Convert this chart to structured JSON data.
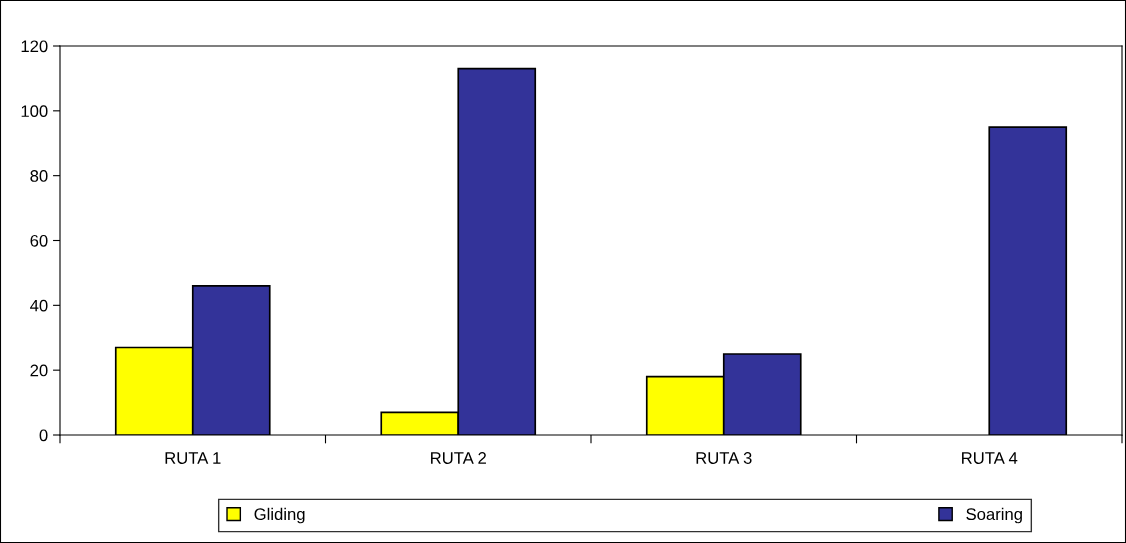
{
  "chart_data": {
    "type": "bar",
    "categories": [
      "RUTA 1",
      "RUTA 2",
      "RUTA 3",
      "RUTA 4"
    ],
    "series": [
      {
        "name": "Gliding",
        "color": "#ffff00",
        "values": [
          27,
          7,
          18,
          null
        ]
      },
      {
        "name": "Soaring",
        "color": "#333399",
        "values": [
          46,
          113,
          25,
          95
        ]
      }
    ],
    "ylim": [
      0,
      120
    ],
    "yticks": [
      0,
      20,
      40,
      60,
      80,
      100,
      120
    ],
    "grid": false,
    "legend": "bottom"
  }
}
